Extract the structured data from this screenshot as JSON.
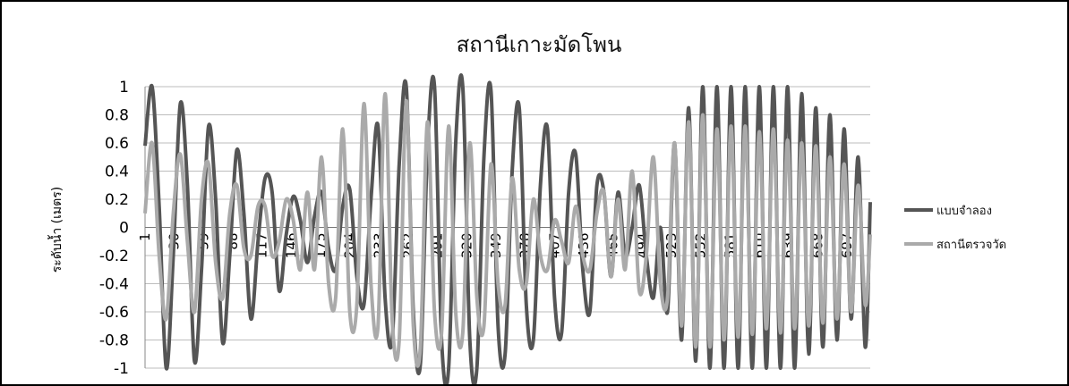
{
  "chart_data": {
    "type": "line",
    "title": "สถานีเกาะมัดโพน",
    "ylabel": "ระดับน้ำ (เมตร)",
    "xlabel": "",
    "ylim": [
      -1,
      1
    ],
    "yticks": [
      1,
      0.8,
      0.6,
      0.4,
      0.2,
      0,
      -0.2,
      -0.4,
      -0.6,
      -0.8,
      -1
    ],
    "ytick_labels": [
      "1",
      "0.8",
      "0.6",
      "0.4",
      "0.2",
      "0",
      "-0.2",
      "-0.4",
      "-0.6",
      "-0.8",
      "-1"
    ],
    "xlim": [
      1,
      720
    ],
    "xtick_labels": [
      "1",
      "30",
      "59",
      "88",
      "117",
      "146",
      "175",
      "204",
      "233",
      "262",
      "291",
      "320",
      "349",
      "378",
      "407",
      "436",
      "465",
      "494",
      "523",
      "552",
      "581",
      "610",
      "639",
      "668",
      "697"
    ],
    "grid": true,
    "legend_position": "right",
    "series": [
      {
        "name": "แบบจำลอง",
        "color": "#555555",
        "x": [
          1,
          8,
          15,
          22,
          29,
          36,
          43,
          50,
          57,
          64,
          71,
          78,
          85,
          92,
          99,
          106,
          113,
          120,
          127,
          134,
          141,
          148,
          155,
          162,
          169,
          176,
          183,
          190,
          197,
          204,
          211,
          218,
          225,
          232,
          239,
          246,
          253,
          260,
          267,
          274,
          281,
          288,
          295,
          302,
          309,
          316,
          323,
          330,
          337,
          344,
          351,
          358,
          365,
          372,
          379,
          386,
          393,
          400,
          407,
          414,
          421,
          428,
          435,
          442,
          449,
          456,
          463,
          470,
          477,
          484,
          491,
          498,
          505,
          512,
          519,
          526,
          533,
          540,
          547,
          554,
          561,
          568,
          575,
          582,
          589,
          596,
          603,
          610,
          617,
          624,
          631,
          638,
          645,
          652,
          659,
          666,
          673,
          680,
          687,
          694,
          701,
          708,
          715,
          720
        ],
        "values": [
          0.58,
          1.0,
          0.15,
          -1.0,
          -0.2,
          0.88,
          0.3,
          -0.95,
          -0.3,
          0.72,
          0.2,
          -0.82,
          -0.2,
          0.55,
          0.1,
          -0.65,
          -0.1,
          0.35,
          0.25,
          -0.45,
          -0.05,
          0.22,
          0.05,
          -0.25,
          0.08,
          0.25,
          -0.15,
          -0.3,
          0.15,
          0.27,
          -0.35,
          -0.55,
          0.2,
          0.72,
          -0.5,
          -0.8,
          0.45,
          1.0,
          -0.6,
          -0.97,
          0.55,
          1.0,
          -0.8,
          -1.0,
          0.6,
          1.0,
          -0.8,
          -1.0,
          0.5,
          0.97,
          -0.7,
          -0.9,
          0.4,
          0.85,
          -0.55,
          -0.8,
          0.3,
          0.7,
          -0.5,
          -0.75,
          0.25,
          0.52,
          -0.3,
          -0.6,
          0.3,
          0.25,
          -0.35,
          0.25,
          -0.2,
          0.0,
          0.3,
          -0.2,
          -0.5,
          0.0,
          -0.6,
          0.6,
          -0.8,
          0.85,
          -0.95,
          1.0,
          -1.0,
          1.0,
          -1.0,
          1.0,
          -1.0,
          1.0,
          -1.0,
          1.0,
          -1.0,
          1.0,
          -1.0,
          1.0,
          -1.0,
          0.95,
          -0.9,
          0.85,
          -0.85,
          0.8,
          -0.8,
          0.7,
          -0.65,
          0.5,
          -0.85,
          0.18
        ]
      },
      {
        "name": "สถานีตรวจวัด",
        "color": "#aaaaaa",
        "x": [
          1,
          8,
          15,
          22,
          29,
          36,
          43,
          50,
          57,
          64,
          71,
          78,
          85,
          92,
          99,
          106,
          113,
          120,
          127,
          134,
          141,
          148,
          155,
          162,
          169,
          176,
          183,
          190,
          197,
          204,
          211,
          218,
          225,
          232,
          239,
          246,
          253,
          260,
          267,
          274,
          281,
          288,
          295,
          302,
          309,
          316,
          323,
          330,
          337,
          344,
          351,
          358,
          365,
          372,
          379,
          386,
          393,
          400,
          407,
          414,
          421,
          428,
          435,
          442,
          449,
          456,
          463,
          470,
          477,
          484,
          491,
          498,
          505,
          512,
          519,
          526,
          533,
          540,
          547,
          554,
          561,
          568,
          575,
          582,
          589,
          596,
          603,
          610,
          617,
          624,
          631,
          638,
          645,
          652,
          659,
          666,
          673,
          680,
          687,
          694,
          701,
          708,
          715,
          720
        ],
        "values": [
          0.1,
          0.6,
          -0.2,
          -0.65,
          0.1,
          0.52,
          -0.1,
          -0.6,
          0.2,
          0.45,
          -0.25,
          -0.5,
          0.1,
          0.3,
          -0.15,
          -0.2,
          0.15,
          0.15,
          -0.2,
          -0.1,
          0.2,
          0.05,
          -0.3,
          0.25,
          -0.3,
          0.5,
          -0.4,
          -0.5,
          0.7,
          -0.6,
          -0.55,
          0.88,
          -0.4,
          -0.7,
          0.95,
          -0.65,
          -0.8,
          0.9,
          -0.7,
          -0.85,
          0.75,
          -0.6,
          -0.75,
          0.72,
          -0.6,
          -0.75,
          0.6,
          -0.5,
          -0.7,
          0.45,
          -0.4,
          -0.55,
          0.35,
          -0.3,
          -0.4,
          0.2,
          -0.2,
          -0.3,
          0.05,
          -0.1,
          -0.25,
          0.15,
          -0.2,
          -0.3,
          0.1,
          0.25,
          -0.35,
          0.2,
          -0.3,
          0.4,
          -0.45,
          -0.2,
          0.5,
          -0.4,
          -0.5,
          0.6,
          -0.7,
          0.75,
          -0.85,
          0.8,
          -0.85,
          0.7,
          -0.8,
          0.72,
          -0.78,
          0.72,
          -0.76,
          0.68,
          -0.72,
          0.7,
          -0.75,
          0.62,
          -0.72,
          0.6,
          -0.7,
          0.58,
          -0.68,
          0.5,
          -0.65,
          0.45,
          -0.6,
          0.3,
          -0.55,
          -0.05
        ]
      }
    ]
  }
}
